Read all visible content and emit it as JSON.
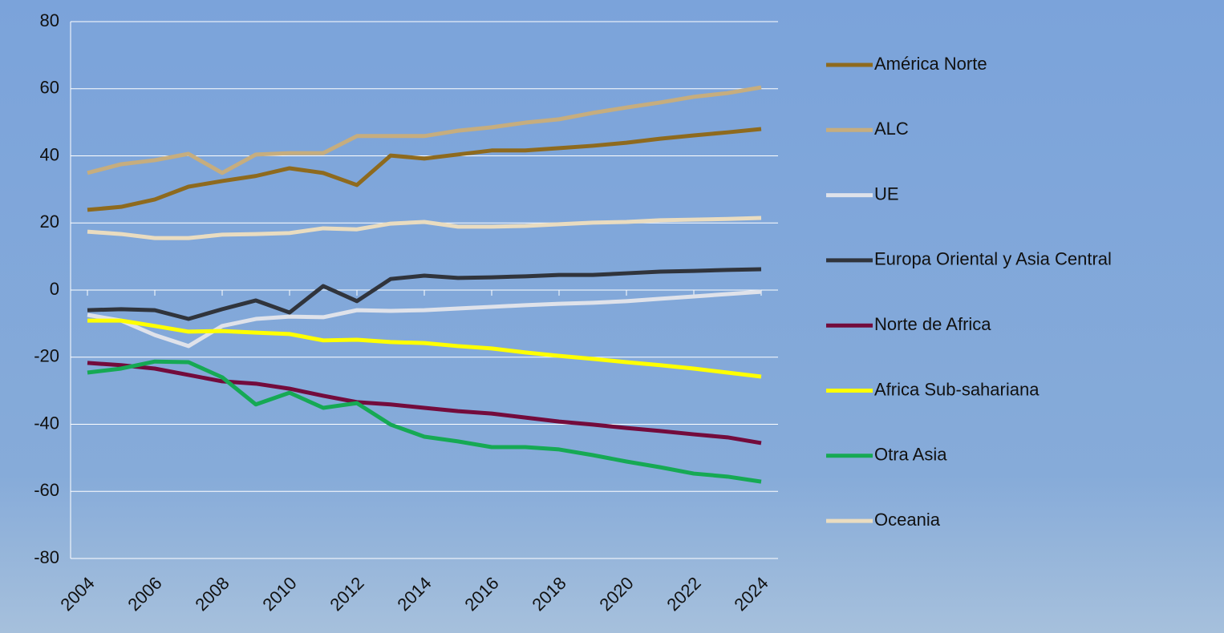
{
  "chart_data": {
    "type": "line",
    "x": [
      2004,
      2005,
      2006,
      2007,
      2008,
      2009,
      2010,
      2011,
      2012,
      2013,
      2014,
      2015,
      2016,
      2017,
      2018,
      2019,
      2020,
      2021,
      2022,
      2023,
      2024
    ],
    "xlim": [
      2003.5,
      2024.5
    ],
    "xticks": [
      2004,
      2006,
      2008,
      2010,
      2012,
      2014,
      2016,
      2018,
      2020,
      2022,
      2024
    ],
    "ylim": [
      -80,
      80
    ],
    "yticks": [
      -80,
      -60,
      -40,
      -20,
      0,
      20,
      40,
      60,
      80
    ],
    "grid": true,
    "legend": "right",
    "series": [
      {
        "name": "América Norte",
        "color": "#8e6a1e",
        "values": [
          23.9,
          24.8,
          27,
          30.8,
          32.5,
          34,
          36.3,
          34.9,
          31.3,
          40.1,
          39.2,
          40.4,
          41.6,
          41.6,
          42.3,
          43,
          43.9,
          45.1,
          46.1,
          47,
          48
        ]
      },
      {
        "name": "ALC",
        "color": "#c6ad7e",
        "values": [
          34.9,
          37.5,
          38.7,
          40.6,
          34.9,
          40.4,
          40.8,
          40.8,
          45.9,
          45.9,
          45.9,
          47.5,
          48.5,
          49.9,
          50.9,
          52.8,
          54.4,
          55.9,
          57.6,
          58.7,
          60.4
        ]
      },
      {
        "name": "UE",
        "color": "#dfe2ea",
        "values": [
          -7.4,
          -9.1,
          -13.4,
          -16.7,
          -10.7,
          -8.6,
          -7.9,
          -8.1,
          -6,
          -6.2,
          -6,
          -5.5,
          -5,
          -4.5,
          -4.1,
          -3.8,
          -3.3,
          -2.6,
          -1.9,
          -1.2,
          -0.5
        ]
      },
      {
        "name": "Europa Oriental y Asia Central",
        "color": "#30343c",
        "values": [
          -6,
          -5.7,
          -6,
          -8.6,
          -5.7,
          -3.1,
          -6.7,
          1.2,
          -3.3,
          3.3,
          4.3,
          3.6,
          3.8,
          4.1,
          4.5,
          4.5,
          5,
          5.5,
          5.7,
          6,
          6.2
        ]
      },
      {
        "name": "Norte de Africa",
        "color": "#730b3c",
        "values": [
          -21.7,
          -22.4,
          -23.4,
          -25.3,
          -27.2,
          -27.9,
          -29.4,
          -31.5,
          -33.4,
          -34.1,
          -35.1,
          -36.1,
          -36.8,
          -38,
          -39.2,
          -40.1,
          -41.1,
          -42,
          -43,
          -43.9,
          -45.6
        ]
      },
      {
        "name": "Africa Sub-sahariana",
        "color": "#ffff00",
        "values": [
          -9.1,
          -9.1,
          -10.7,
          -12.4,
          -12.2,
          -12.7,
          -13.1,
          -15,
          -14.8,
          -15.5,
          -15.8,
          -16.7,
          -17.4,
          -18.6,
          -19.6,
          -20.5,
          -21.5,
          -22.4,
          -23.4,
          -24.6,
          -25.8
        ]
      },
      {
        "name": "Otra Asia",
        "color": "#16a954",
        "values": [
          -24.6,
          -23.4,
          -21.3,
          -21.5,
          -26,
          -34.1,
          -30.6,
          -35.1,
          -33.7,
          -40.1,
          -43.7,
          -45.1,
          -46.8,
          -46.8,
          -47.5,
          -49.2,
          -51.1,
          -52.8,
          -54.7,
          -55.6,
          -57.1
        ]
      },
      {
        "name": "Oceania",
        "color": "#e9dcc0",
        "values": [
          17.4,
          16.7,
          15.5,
          15.5,
          16.5,
          16.7,
          17,
          18.4,
          18.1,
          19.8,
          20.3,
          18.9,
          18.9,
          19.1,
          19.6,
          20.1,
          20.3,
          20.8,
          21,
          21.2,
          21.5
        ]
      }
    ]
  }
}
